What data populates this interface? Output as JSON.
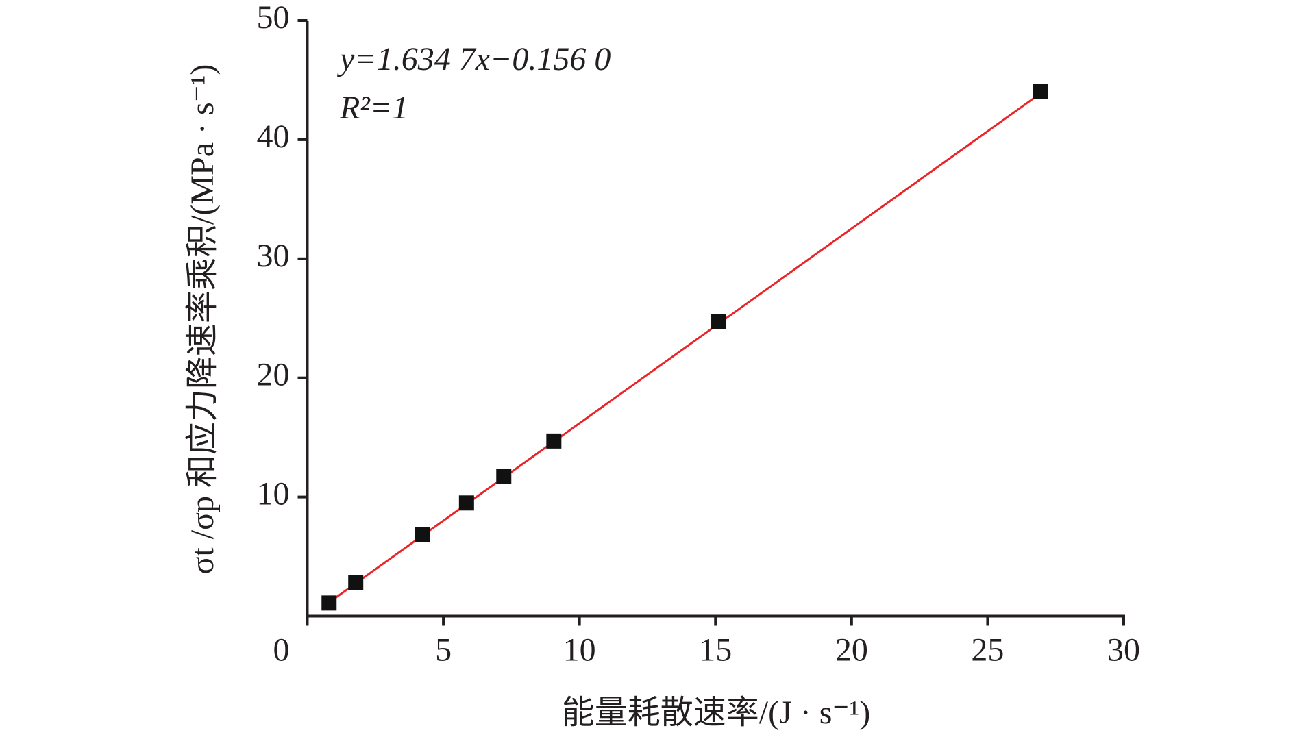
{
  "chart_data": {
    "type": "scatter",
    "x_label": "能量耗散速率/(J · s⁻¹)",
    "y_label": "σt /σp 和应力降速率乘积/(MPa · s⁻¹)",
    "annotations": [
      "y=1.634 7x−0.156 0",
      "R²=1"
    ],
    "xlim": [
      0,
      30
    ],
    "ylim": [
      0,
      50
    ],
    "xticks": [
      0,
      5,
      10,
      15,
      20,
      25,
      30
    ],
    "yticks": [
      10,
      20,
      30,
      40,
      50
    ],
    "x": [
      0.8,
      1.78,
      4.22,
      5.85,
      7.22,
      9.06,
      15.12,
      26.94
    ],
    "values": [
      1.1,
      2.8,
      6.85,
      9.5,
      11.75,
      14.7,
      24.7,
      44.05
    ],
    "color": "#111111",
    "fit": {
      "color": "#e8262a",
      "x": [
        0.8,
        26.94
      ],
      "values": [
        1.15,
        43.88
      ]
    }
  }
}
